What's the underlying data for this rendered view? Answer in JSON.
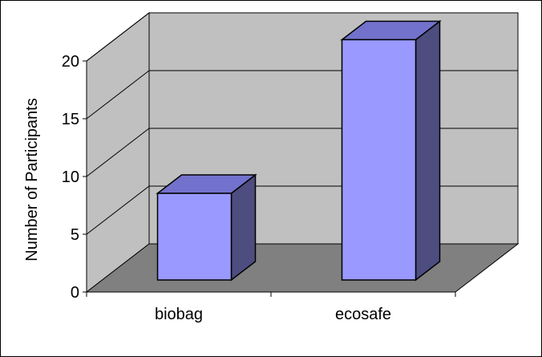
{
  "chart_data": {
    "type": "bar",
    "view": "3d",
    "categories": [
      "biobag",
      "ecosafe"
    ],
    "values": [
      7.5,
      20.8
    ],
    "title": "",
    "xlabel": "",
    "ylabel": "Number of Participants",
    "ylim": [
      0,
      20
    ],
    "yticks": [
      0,
      5,
      10,
      15,
      20
    ],
    "grid": true,
    "legend": "none",
    "colors": {
      "bar_front": "#9999ff",
      "bar_top": "#7272cc",
      "bar_side": "#4d4d80",
      "back_wall": "#c0c0c0",
      "side_wall": "#c0c0c0",
      "floor": "#808080",
      "outline": "#000000"
    }
  }
}
